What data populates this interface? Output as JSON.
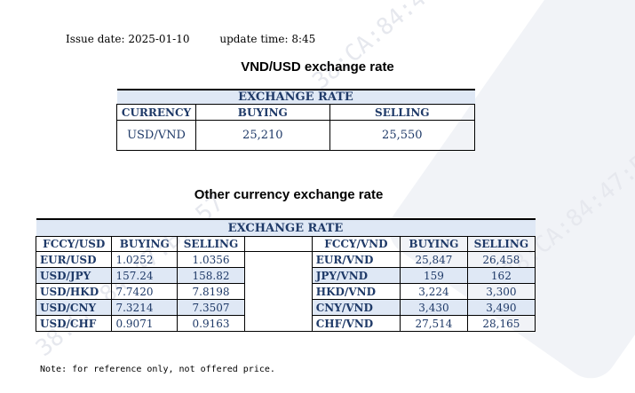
{
  "meta": {
    "issue_date": "Issue date: 2025-01-10",
    "update_time": "update time: 8:45"
  },
  "watermark": {
    "text": "38:CA:84:47:B7:57"
  },
  "vnd_usd": {
    "title": "VND/USD exchange rate",
    "band": "EXCHANGE RATE",
    "headers": [
      "CURRENCY",
      "BUYING",
      "SELLING"
    ],
    "row": {
      "currency": "USD/VND",
      "buying": "25,210",
      "selling": "25,550"
    }
  },
  "other": {
    "title": "Other currency exchange rate",
    "band": "EXCHANGE  RATE",
    "left_headers": [
      "FCCY/USD",
      "BUYING",
      "SELLING"
    ],
    "right_headers": [
      "FCCY/VND",
      "BUYING",
      "SELLING"
    ],
    "rows": [
      {
        "l_pair": "EUR/USD",
        "l_buy": "1.0252",
        "l_sell": "1.0356",
        "r_pair": "EUR/VND",
        "r_buy": "25,847",
        "r_sell": "26,458"
      },
      {
        "l_pair": "USD/JPY",
        "l_buy": "157.24",
        "l_sell": "158.82",
        "r_pair": "JPY/VND",
        "r_buy": "159",
        "r_sell": "162"
      },
      {
        "l_pair": "USD/HKD",
        "l_buy": "7.7420",
        "l_sell": "7.8198",
        "r_pair": "HKD/VND",
        "r_buy": "3,224",
        "r_sell": "3,300"
      },
      {
        "l_pair": "USD/CNY",
        "l_buy": "7.3214",
        "l_sell": "7.3507",
        "r_pair": "CNY/VND",
        "r_buy": "3,430",
        "r_sell": "3,490"
      },
      {
        "l_pair": "USD/CHF",
        "l_buy": "0.9071",
        "l_sell": "0.9163",
        "r_pair": "CHF/VND",
        "r_buy": "27,514",
        "r_sell": "28,165"
      }
    ]
  },
  "note": "Note: for reference only, not offered price."
}
